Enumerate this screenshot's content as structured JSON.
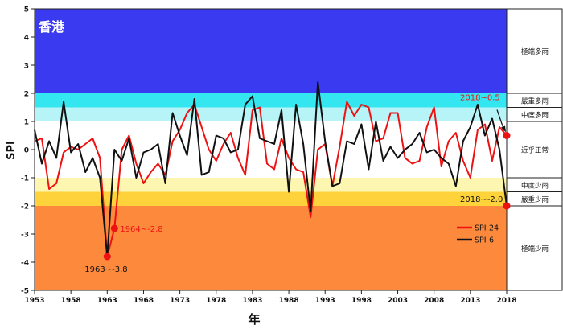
{
  "chart_data": {
    "type": "line",
    "title": "香港",
    "xlabel": "年",
    "ylabel": "SPI",
    "ylim": [
      -5,
      5
    ],
    "xlim": [
      1953,
      2018
    ],
    "x_ticks": [
      1953,
      1958,
      1963,
      1968,
      1973,
      1978,
      1983,
      1988,
      1993,
      1998,
      2003,
      2008,
      2013,
      2018
    ],
    "y_ticks": [
      5,
      4,
      3,
      2,
      1,
      0,
      -1,
      -2,
      -3,
      -4,
      -5
    ],
    "bands": [
      {
        "key": "extreme-wet",
        "from": 2.0,
        "to": 5.0,
        "color": "#3a3af0",
        "label": "極端多雨"
      },
      {
        "key": "severe-wet",
        "from": 1.5,
        "to": 2.0,
        "color": "#33e6f0",
        "label": "嚴重多雨"
      },
      {
        "key": "moderate-wet",
        "from": 1.0,
        "to": 1.5,
        "color": "#b6f4f8",
        "label": "中度多雨"
      },
      {
        "key": "near-normal",
        "from": -1.0,
        "to": 1.0,
        "color": "#ffffff",
        "label": "近乎正常"
      },
      {
        "key": "moderate-dry",
        "from": -1.5,
        "to": -1.0,
        "color": "#fdf6b0",
        "label": "中度少雨"
      },
      {
        "key": "severe-dry",
        "from": -2.0,
        "to": -1.5,
        "color": "#fdd23a",
        "label": "嚴重少雨"
      },
      {
        "key": "extreme-dry",
        "from": -5.0,
        "to": -2.0,
        "color": "#fd8a3c",
        "label": "極端少雨"
      }
    ],
    "series": [
      {
        "name": "SPI-24",
        "color": "#ee1111",
        "x": [
          1953,
          1954,
          1955,
          1956,
          1957,
          1958,
          1959,
          1960,
          1961,
          1962,
          1963,
          1964,
          1965,
          1966,
          1967,
          1968,
          1969,
          1970,
          1971,
          1972,
          1973,
          1974,
          1975,
          1976,
          1977,
          1978,
          1979,
          1980,
          1981,
          1982,
          1983,
          1984,
          1985,
          1986,
          1987,
          1988,
          1989,
          1990,
          1991,
          1992,
          1993,
          1994,
          1995,
          1996,
          1997,
          1998,
          1999,
          2000,
          2001,
          2002,
          2003,
          2004,
          2005,
          2006,
          2007,
          2008,
          2009,
          2010,
          2011,
          2012,
          2013,
          2014,
          2015,
          2016,
          2017,
          2018
        ],
        "values": [
          0.3,
          0.4,
          -1.4,
          -1.2,
          -0.1,
          0.1,
          0.0,
          0.2,
          0.4,
          -0.3,
          -3.8,
          -2.8,
          0.0,
          0.5,
          -0.5,
          -1.2,
          -0.8,
          -0.5,
          -0.9,
          0.3,
          0.7,
          1.3,
          1.6,
          0.8,
          0.0,
          -0.4,
          0.2,
          0.6,
          -0.3,
          -0.9,
          1.4,
          1.5,
          -0.5,
          -0.7,
          0.4,
          -0.3,
          -0.7,
          -0.8,
          -2.4,
          0.0,
          0.2,
          -1.3,
          0.1,
          1.7,
          1.2,
          1.6,
          1.5,
          0.3,
          0.4,
          1.3,
          1.3,
          -0.3,
          -0.5,
          -0.4,
          0.8,
          1.5,
          -0.6,
          0.3,
          0.6,
          -0.4,
          -1.0,
          0.7,
          0.9,
          -0.4,
          0.8,
          0.5
        ]
      },
      {
        "name": "SPI-6",
        "color": "#111111",
        "x": [
          1953,
          1954,
          1955,
          1956,
          1957,
          1958,
          1959,
          1960,
          1961,
          1962,
          1963,
          1964,
          1965,
          1966,
          1967,
          1968,
          1969,
          1970,
          1971,
          1972,
          1973,
          1974,
          1975,
          1976,
          1977,
          1978,
          1979,
          1980,
          1981,
          1982,
          1983,
          1984,
          1985,
          1986,
          1987,
          1988,
          1989,
          1990,
          1991,
          1992,
          1993,
          1994,
          1995,
          1996,
          1997,
          1998,
          1999,
          2000,
          2001,
          2002,
          2003,
          2004,
          2005,
          2006,
          2007,
          2008,
          2009,
          2010,
          2011,
          2012,
          2013,
          2014,
          2015,
          2016,
          2017,
          2018
        ],
        "values": [
          0.7,
          -0.5,
          0.3,
          -0.3,
          1.7,
          -0.1,
          0.2,
          -0.8,
          -0.3,
          -1.0,
          -3.8,
          0.0,
          -0.4,
          0.4,
          -1.0,
          -0.1,
          0.0,
          0.2,
          -1.2,
          1.3,
          0.5,
          -0.2,
          1.8,
          -0.9,
          -0.8,
          0.5,
          0.4,
          -0.1,
          0.0,
          1.6,
          1.9,
          0.4,
          0.3,
          0.2,
          1.4,
          -1.5,
          1.6,
          0.2,
          -2.2,
          2.4,
          0.3,
          -1.3,
          -1.2,
          0.3,
          0.2,
          0.9,
          -0.7,
          1.0,
          -0.4,
          0.1,
          -0.3,
          0.0,
          0.2,
          0.6,
          -0.1,
          0.0,
          -0.3,
          -0.5,
          -1.3,
          0.3,
          0.8,
          1.6,
          0.5,
          1.1,
          0.0,
          -2.0
        ]
      }
    ],
    "annotations": [
      {
        "key": "min-spi6",
        "text": "1963~-3.8",
        "x": 1963,
        "y": -3.8,
        "color": "#111111",
        "series": "SPI-6"
      },
      {
        "key": "min-spi24",
        "text": "1964~-2.8",
        "x": 1964,
        "y": -2.8,
        "color": "#ee1111",
        "series": "SPI-24"
      },
      {
        "key": "last-spi24",
        "text": "2018~0.5",
        "x": 2018,
        "y": 0.5,
        "color": "#ee1111",
        "series": "SPI-24"
      },
      {
        "key": "last-spi6",
        "text": "2018~-2.0",
        "x": 2018,
        "y": -2.0,
        "color": "#111111",
        "series": "SPI-6"
      }
    ],
    "legend": {
      "position": "right",
      "entries": [
        "SPI-24",
        "SPI-6"
      ]
    }
  }
}
